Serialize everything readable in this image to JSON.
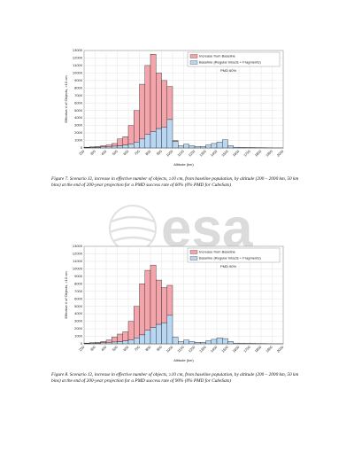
{
  "chart_data": [
    {
      "type": "histogram",
      "x_label": "Altitude (km)",
      "y_label": "Effective # of Objects, >10 cm",
      "annotation": "PMD 60%",
      "grid": true,
      "legend": "upper right",
      "bins": [
        200,
        250,
        300,
        350,
        400,
        450,
        500,
        550,
        600,
        650,
        700,
        750,
        800,
        850,
        900,
        950,
        1000,
        1050,
        1100,
        1150,
        1200,
        1250,
        1300,
        1350,
        1400,
        1450,
        1500,
        1550,
        1600,
        1650,
        1700,
        1750,
        1800,
        1850,
        1900,
        1950,
        2000
      ],
      "series": [
        {
          "name": "Baseline (Regular Intacts + Fragments)",
          "color": "#b9d6f2",
          "values": [
            50,
            80,
            100,
            150,
            200,
            250,
            300,
            400,
            500,
            800,
            1200,
            1800,
            2200,
            2600,
            2800,
            3800,
            900,
            300,
            500,
            300,
            200,
            200,
            400,
            600,
            800,
            1100,
            300,
            100,
            80,
            60,
            50,
            40,
            30,
            20,
            10,
            10
          ]
        },
        {
          "name": "Increase from Baseline",
          "color": "#f4a5ab",
          "values": [
            50,
            70,
            100,
            150,
            200,
            350,
            900,
            1100,
            2500,
            4200,
            7300,
            9200,
            10300,
            7400,
            6200,
            4400,
            100,
            0,
            0,
            0,
            0,
            0,
            0,
            0,
            0,
            0,
            0,
            0,
            0,
            0,
            0,
            0,
            0,
            0,
            0,
            0
          ]
        }
      ],
      "xlim": [
        200,
        2000
      ],
      "xticks": [
        200,
        300,
        400,
        500,
        600,
        700,
        800,
        900,
        1000,
        1100,
        1200,
        1300,
        1400,
        1500,
        1600,
        1700,
        1800,
        1900,
        2000
      ],
      "ylim": [
        0,
        13000
      ],
      "yticks": [
        0,
        1000,
        2000,
        3000,
        4000,
        5000,
        6000,
        7000,
        8000,
        9000,
        10000,
        11000,
        12000,
        13000
      ]
    },
    {
      "type": "histogram",
      "x_label": "Altitude (km)",
      "y_label": "Effective # of Objects, >10 cm",
      "annotation": "PMD 90%",
      "grid": true,
      "legend": "upper right",
      "bins": [
        200,
        250,
        300,
        350,
        400,
        450,
        500,
        550,
        600,
        650,
        700,
        750,
        800,
        850,
        900,
        950,
        1000,
        1050,
        1100,
        1150,
        1200,
        1250,
        1300,
        1350,
        1400,
        1450,
        1500,
        1550,
        1600,
        1650,
        1700,
        1750,
        1800,
        1850,
        1900,
        1950,
        2000
      ],
      "series": [
        {
          "name": "Baseline (Regular Intacts + Fragments)",
          "color": "#b9d6f2",
          "values": [
            50,
            80,
            100,
            150,
            200,
            250,
            300,
            400,
            500,
            800,
            1200,
            1800,
            2200,
            2600,
            2800,
            3800,
            900,
            300,
            500,
            300,
            200,
            200,
            400,
            600,
            800,
            700,
            300,
            100,
            80,
            60,
            50,
            40,
            30,
            20,
            10,
            10
          ]
        },
        {
          "name": "Increase from Baseline",
          "color": "#f4a5ab",
          "values": [
            50,
            70,
            100,
            150,
            300,
            650,
            1000,
            1200,
            2500,
            4200,
            6800,
            8000,
            8300,
            5900,
            4700,
            4000,
            0,
            0,
            0,
            0,
            0,
            0,
            0,
            0,
            0,
            0,
            0,
            0,
            0,
            0,
            0,
            0,
            0,
            0,
            0,
            0
          ]
        }
      ],
      "xlim": [
        200,
        2000
      ],
      "xticks": [
        200,
        300,
        400,
        500,
        600,
        700,
        800,
        900,
        1000,
        1100,
        1200,
        1300,
        1400,
        1500,
        1600,
        1700,
        1800,
        1900,
        2000
      ],
      "ylim": [
        0,
        13000
      ],
      "yticks": [
        0,
        1000,
        2000,
        3000,
        4000,
        5000,
        6000,
        7000,
        8000,
        9000,
        10000,
        11000,
        12000,
        13000
      ]
    }
  ],
  "captions": [
    "Figure 7. Scenario J2, increase in effective number of objects, ≥10 cm, from baseline population, by altitude (200 – 2000 km, 50 km bins) at the end of 200-year projection for a PMD success rate of 60% (0% PMD for CubeSats)",
    "Figure 8. Scenario J2, increase in effective number of objects, ≥10 cm, from baseline population, by altitude (200 – 2000 km, 50 km bins) at the end of 200-year projection for a PMD success rate of 90% (0% PMD for CubeSats)"
  ],
  "watermark": "esa"
}
